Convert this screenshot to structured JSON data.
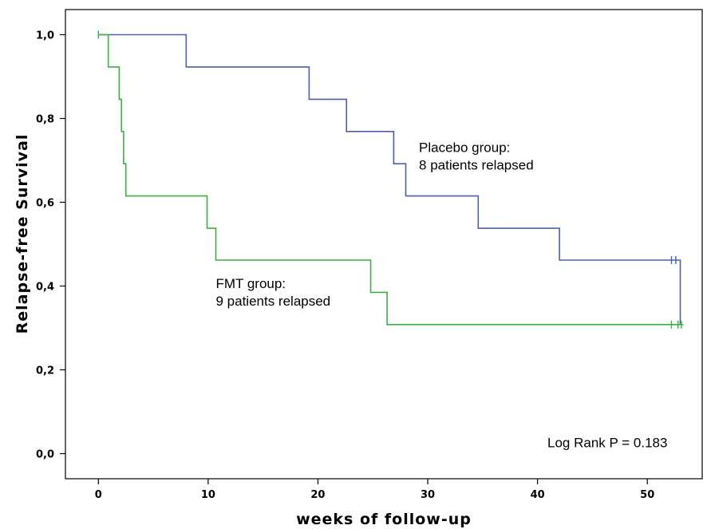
{
  "chart_data": {
    "type": "line",
    "step": true,
    "xlabel": "weeks of follow-up",
    "ylabel": "Relapse-free Survival",
    "xlim": [
      -3,
      55
    ],
    "ylim": [
      -0.06,
      1.06
    ],
    "x_ticks": [
      0,
      10,
      20,
      30,
      40,
      50
    ],
    "x_tick_labels": [
      "0",
      "10",
      "20",
      "30",
      "40",
      "50"
    ],
    "y_ticks": [
      0,
      0.2,
      0.4,
      0.6,
      0.8,
      1.0
    ],
    "y_tick_labels": [
      "0,0",
      "0,2",
      "0,4",
      "0,6",
      "0,8",
      "1,0"
    ],
    "grid": false,
    "series": [
      {
        "name": "Placebo group",
        "color": "#4a5fb5",
        "points": [
          [
            0,
            1.0
          ],
          [
            8,
            1.0
          ],
          [
            8,
            0.923
          ],
          [
            19.2,
            0.923
          ],
          [
            19.2,
            0.846
          ],
          [
            22.6,
            0.846
          ],
          [
            22.6,
            0.769
          ],
          [
            26.9,
            0.769
          ],
          [
            26.9,
            0.692
          ],
          [
            28,
            0.692
          ],
          [
            28,
            0.615
          ],
          [
            34.6,
            0.615
          ],
          [
            34.6,
            0.538
          ],
          [
            42,
            0.538
          ],
          [
            42,
            0.462
          ],
          [
            53,
            0.462
          ],
          [
            53,
            0.308
          ]
        ],
        "censored": [
          [
            52.2,
            0.462
          ],
          [
            52.6,
            0.462
          ]
        ]
      },
      {
        "name": "FMT group",
        "color": "#3cb043",
        "points": [
          [
            0,
            1.0
          ],
          [
            0.9,
            1.0
          ],
          [
            0.9,
            0.923
          ],
          [
            1.9,
            0.923
          ],
          [
            1.9,
            0.846
          ],
          [
            2.1,
            0.846
          ],
          [
            2.1,
            0.769
          ],
          [
            2.3,
            0.769
          ],
          [
            2.3,
            0.692
          ],
          [
            2.5,
            0.692
          ],
          [
            2.5,
            0.615
          ],
          [
            9.9,
            0.615
          ],
          [
            9.9,
            0.538
          ],
          [
            10.7,
            0.538
          ],
          [
            10.7,
            0.462
          ],
          [
            24.8,
            0.462
          ],
          [
            24.8,
            0.385
          ],
          [
            26.3,
            0.385
          ],
          [
            26.3,
            0.308
          ],
          [
            53.3,
            0.308
          ]
        ],
        "censored": [
          [
            0,
            1.0
          ],
          [
            52.2,
            0.308
          ],
          [
            52.8,
            0.308
          ],
          [
            53.1,
            0.308
          ]
        ]
      }
    ],
    "annotations": [
      {
        "id": "placebo",
        "lines": [
          "Placebo group:",
          "8 patients relapsed"
        ],
        "x": 29.2,
        "y": 0.72
      },
      {
        "id": "fmt",
        "lines": [
          "FMT group:",
          "9 patients relapsed"
        ],
        "x": 10.7,
        "y": 0.395
      },
      {
        "id": "logrank",
        "lines": [
          "Log Rank P = 0.183"
        ],
        "x": 40.9,
        "y": 0.015
      }
    ]
  }
}
